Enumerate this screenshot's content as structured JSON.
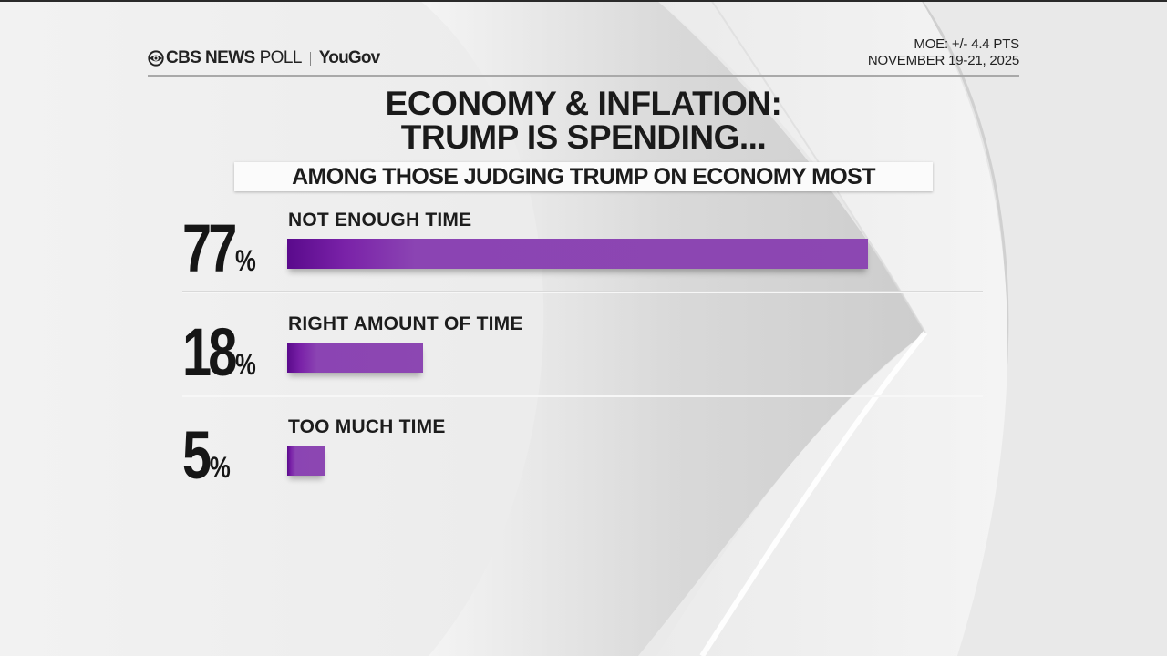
{
  "header": {
    "brand": "CBS NEWS",
    "brand_suffix": "POLL",
    "partner": "YouGov",
    "logo_icon": "cbs-eye-icon",
    "moe": "MOE: +/- 4.4 PTS",
    "dates": "NOVEMBER 19-21, 2025"
  },
  "colors": {
    "bar_dark": "#5a0a8c",
    "bar_main": "#8c47b2",
    "text": "#1b1b1b",
    "background": "#ececec"
  },
  "chart_data": {
    "type": "bar",
    "orientation": "horizontal",
    "title": "ECONOMY & INFLATION: TRUMP IS SPENDING...",
    "title_lines": [
      "ECONOMY & INFLATION:",
      "TRUMP IS SPENDING..."
    ],
    "subtitle": "AMONG THOSE JUDGING TRUMP ON ECONOMY MOST",
    "categories": [
      "NOT ENOUGH TIME",
      "RIGHT AMOUNT OF TIME",
      "TOO MUCH TIME"
    ],
    "values": [
      77,
      18,
      5
    ],
    "value_labels": [
      "77",
      "18",
      "5"
    ],
    "unit": "%",
    "xlim": [
      0,
      100
    ],
    "grid": false,
    "legend": "none"
  }
}
